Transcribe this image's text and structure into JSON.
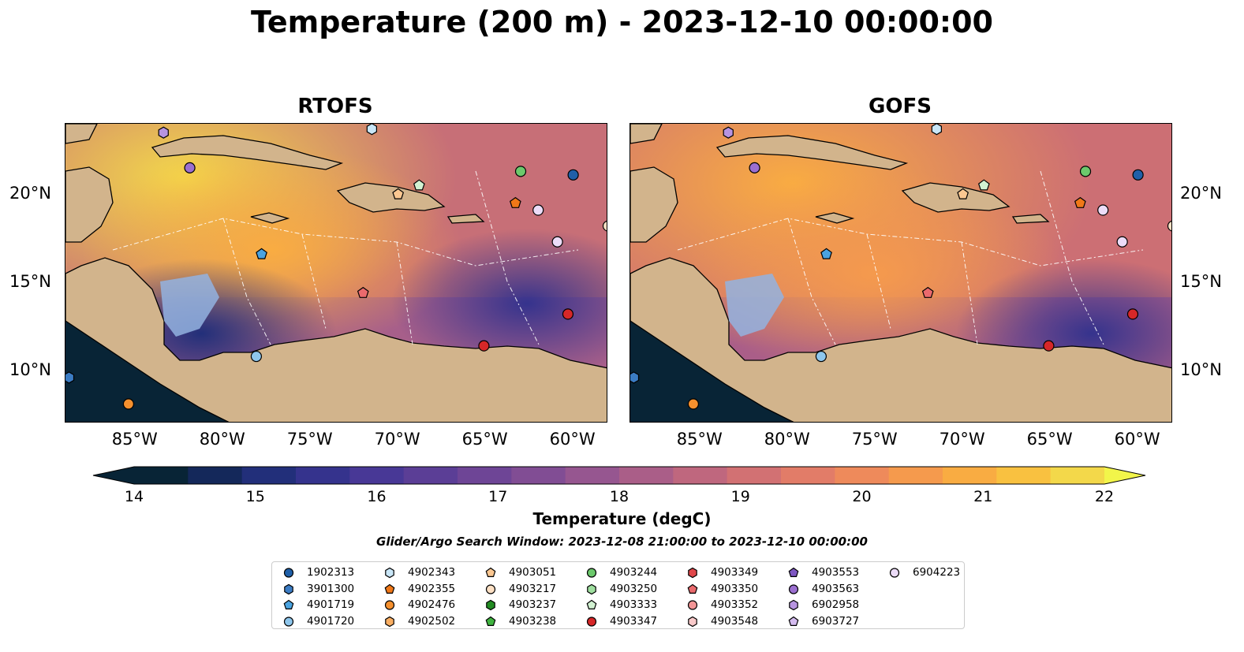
{
  "suptitle": "Temperature (200 m) - 2023-12-10 00:00:00",
  "panels": [
    {
      "title": "RTOFS"
    },
    {
      "title": "GOFS"
    }
  ],
  "axes": {
    "lon_ticks": [
      "85°W",
      "80°W",
      "75°W",
      "70°W",
      "65°W",
      "60°W"
    ],
    "lat_ticks": [
      "20°N",
      "15°N",
      "10°N"
    ]
  },
  "colorbar": {
    "label": "Temperature (degC)",
    "ticks": [
      "14",
      "15",
      "16",
      "17",
      "18",
      "19",
      "20",
      "21",
      "22"
    ],
    "vmin": 14,
    "vmax": 22,
    "colors": [
      "#082436",
      "#14285a",
      "#222f7a",
      "#35338d",
      "#483896",
      "#5b3e96",
      "#6e4596",
      "#814d94",
      "#965690",
      "#aa5e88",
      "#bf677e",
      "#d27173",
      "#e27c68",
      "#ee8a5b",
      "#f59a4d",
      "#f9ac42",
      "#f9c140",
      "#f3d84a"
    ],
    "extend": "both"
  },
  "search_window": "Glider/Argo Search Window: 2023-12-08 21:00:00 to 2023-12-10 00:00:00",
  "legend": [
    {
      "id": "1902313",
      "color": "#1f5fa8",
      "marker": "circle"
    },
    {
      "id": "3901300",
      "color": "#3b7cc4",
      "marker": "hexagon"
    },
    {
      "id": "4901719",
      "color": "#4aa3e0",
      "marker": "pentagon"
    },
    {
      "id": "4901720",
      "color": "#8ec6ec",
      "marker": "circle"
    },
    {
      "id": "4902343",
      "color": "#c9e6f7",
      "marker": "hexagon"
    },
    {
      "id": "4902355",
      "color": "#f07818",
      "marker": "pentagon"
    },
    {
      "id": "4902476",
      "color": "#f5902e",
      "marker": "circle"
    },
    {
      "id": "4902502",
      "color": "#f9ae62",
      "marker": "hexagon"
    },
    {
      "id": "4903051",
      "color": "#fbc791",
      "marker": "pentagon"
    },
    {
      "id": "4903217",
      "color": "#fde0c4",
      "marker": "circle"
    },
    {
      "id": "4903237",
      "color": "#228b22",
      "marker": "hexagon"
    },
    {
      "id": "4903238",
      "color": "#3fb33f",
      "marker": "pentagon"
    },
    {
      "id": "4903244",
      "color": "#6cc96c",
      "marker": "circle"
    },
    {
      "id": "4903250",
      "color": "#9fdf9f",
      "marker": "hexagon"
    },
    {
      "id": "4903333",
      "color": "#d2f2d2",
      "marker": "pentagon"
    },
    {
      "id": "4903347",
      "color": "#d62728",
      "marker": "circle"
    },
    {
      "id": "4903349",
      "color": "#e0474a",
      "marker": "hexagon"
    },
    {
      "id": "4903350",
      "color": "#ea6a6d",
      "marker": "pentagon"
    },
    {
      "id": "4903352",
      "color": "#f29596",
      "marker": "circle"
    },
    {
      "id": "4903548",
      "color": "#f8c9c9",
      "marker": "hexagon"
    },
    {
      "id": "4903553",
      "color": "#7e57c2",
      "marker": "pentagon"
    },
    {
      "id": "4903563",
      "color": "#9b6fd0",
      "marker": "circle"
    },
    {
      "id": "6902958",
      "color": "#b794e0",
      "marker": "hexagon"
    },
    {
      "id": "6903727",
      "color": "#d4bbef",
      "marker": "pentagon"
    },
    {
      "id": "6904223",
      "color": "#ecdcf8",
      "marker": "circle"
    }
  ],
  "floats_on_map": [
    {
      "id": "4903563",
      "lon": -81.9,
      "lat": 21.5
    },
    {
      "id": "6902958",
      "lon": -83.4,
      "lat": 23.5
    },
    {
      "id": "4902343",
      "lon": -71.5,
      "lat": 23.7
    },
    {
      "id": "4903244",
      "lon": -63.0,
      "lat": 21.3
    },
    {
      "id": "1902313",
      "lon": -60.0,
      "lat": 21.1
    },
    {
      "id": "4903051",
      "lon": -70.0,
      "lat": 20.0
    },
    {
      "id": "4903333",
      "lon": -68.8,
      "lat": 20.5
    },
    {
      "id": "4902355",
      "lon": -63.3,
      "lat": 19.5
    },
    {
      "id": "6904223",
      "lon": -62.0,
      "lat": 19.1
    },
    {
      "id": "6904223",
      "lon": -60.9,
      "lat": 17.3
    },
    {
      "id": "4903217",
      "lon": -58.0,
      "lat": 18.2
    },
    {
      "id": "4901719",
      "lon": -77.8,
      "lat": 16.6
    },
    {
      "id": "4903350",
      "lon": -72.0,
      "lat": 14.4
    },
    {
      "id": "4903347",
      "lon": -60.3,
      "lat": 13.2
    },
    {
      "id": "4903347",
      "lon": -65.1,
      "lat": 11.4
    },
    {
      "id": "4901720",
      "lon": -78.1,
      "lat": 10.8
    },
    {
      "id": "4902476",
      "lon": -85.4,
      "lat": 8.1
    },
    {
      "id": "3901300",
      "lon": -88.8,
      "lat": 9.6
    }
  ],
  "map_extent": {
    "lon_min": -89,
    "lon_max": -58,
    "lat_min": 7,
    "lat_max": 24
  }
}
